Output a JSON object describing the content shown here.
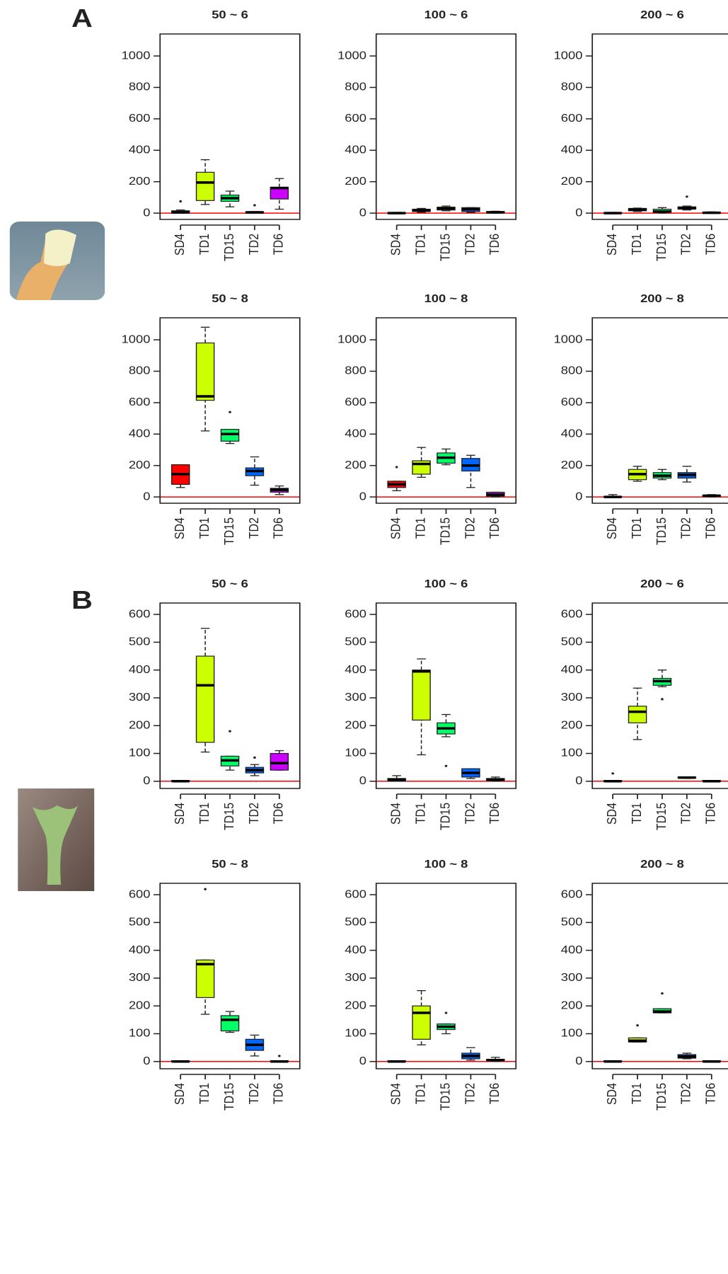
{
  "panel_labels": [
    "A",
    "B"
  ],
  "chart_data": [
    {
      "type": "box",
      "title": "50 ~ 6",
      "categories": [
        "SD4",
        "TD1",
        "TD15",
        "TD2",
        "TD6"
      ],
      "colors": [
        "#ff0000",
        "#ccff00",
        "#00ff66",
        "#0066ff",
        "#cc00ff"
      ],
      "ylim": [
        -40,
        1140
      ],
      "yticks": [
        0,
        200,
        400,
        600,
        800,
        1000
      ],
      "hline": 0,
      "hline_color": "#ff0000",
      "boxes": [
        {
          "min": 0,
          "q1": 0,
          "median": 5,
          "q3": 15,
          "max": 20,
          "outliers": [
            75
          ]
        },
        {
          "min": 55,
          "q1": 80,
          "median": 195,
          "q3": 260,
          "max": 340,
          "outliers": []
        },
        {
          "min": 40,
          "q1": 75,
          "median": 95,
          "q3": 115,
          "max": 140,
          "outliers": []
        },
        {
          "min": 0,
          "q1": 0,
          "median": 5,
          "q3": 8,
          "max": 10,
          "outliers": [
            50
          ]
        },
        {
          "min": 25,
          "q1": 90,
          "median": 160,
          "q3": 165,
          "max": 220,
          "outliers": []
        }
      ]
    },
    {
      "type": "box",
      "title": "100 ~ 6",
      "categories": [
        "SD4",
        "TD1",
        "TD15",
        "TD2",
        "TD6"
      ],
      "colors": [
        "#ff0000",
        "#ccff00",
        "#00ff66",
        "#0066ff",
        "#cc00ff"
      ],
      "ylim": [
        -40,
        1140
      ],
      "yticks": [
        0,
        200,
        400,
        600,
        800,
        1000
      ],
      "hline": 0,
      "hline_color": "#ff0000",
      "boxes": [
        {
          "min": 0,
          "q1": 0,
          "median": 0,
          "q3": 3,
          "max": 5,
          "outliers": []
        },
        {
          "min": 5,
          "q1": 10,
          "median": 18,
          "q3": 25,
          "max": 30,
          "outliers": []
        },
        {
          "min": 15,
          "q1": 20,
          "median": 30,
          "q3": 38,
          "max": 45,
          "outliers": []
        },
        {
          "min": 5,
          "q1": 10,
          "median": 25,
          "q3": 35,
          "max": 35,
          "outliers": []
        },
        {
          "min": 0,
          "q1": 2,
          "median": 5,
          "q3": 10,
          "max": 12,
          "outliers": []
        }
      ]
    },
    {
      "type": "box",
      "title": "200 ~ 6",
      "categories": [
        "SD4",
        "TD1",
        "TD15",
        "TD2",
        "TD6"
      ],
      "colors": [
        "#ff0000",
        "#ccff00",
        "#00ff66",
        "#0066ff",
        "#cc00ff"
      ],
      "ylim": [
        -40,
        1140
      ],
      "yticks": [
        0,
        200,
        400,
        600,
        800,
        1000
      ],
      "hline": 0,
      "hline_color": "#ff0000",
      "boxes": [
        {
          "min": 0,
          "q1": 0,
          "median": 0,
          "q3": 3,
          "max": 5,
          "outliers": []
        },
        {
          "min": 10,
          "q1": 15,
          "median": 22,
          "q3": 30,
          "max": 32,
          "outliers": []
        },
        {
          "min": 0,
          "q1": 5,
          "median": 10,
          "q3": 25,
          "max": 35,
          "outliers": []
        },
        {
          "min": 20,
          "q1": 25,
          "median": 32,
          "q3": 40,
          "max": 45,
          "outliers": [
            105
          ]
        },
        {
          "min": 0,
          "q1": 0,
          "median": 2,
          "q3": 5,
          "max": 8,
          "outliers": []
        }
      ]
    },
    {
      "type": "box",
      "title": "50 ~ 8",
      "categories": [
        "SD4",
        "TD1",
        "TD15",
        "TD2",
        "TD6"
      ],
      "colors": [
        "#ff0000",
        "#ccff00",
        "#00ff66",
        "#0066ff",
        "#cc00ff"
      ],
      "ylim": [
        -40,
        1140
      ],
      "yticks": [
        0,
        200,
        400,
        600,
        800,
        1000
      ],
      "hline": 0,
      "hline_color": "#ff0000",
      "boxes": [
        {
          "min": 60,
          "q1": 80,
          "median": 145,
          "q3": 205,
          "max": 205,
          "outliers": []
        },
        {
          "min": 420,
          "q1": 615,
          "median": 640,
          "q3": 980,
          "max": 1080,
          "outliers": []
        },
        {
          "min": 340,
          "q1": 355,
          "median": 400,
          "q3": 430,
          "max": 430,
          "outliers": [
            540
          ]
        },
        {
          "min": 75,
          "q1": 135,
          "median": 165,
          "q3": 185,
          "max": 255,
          "outliers": []
        },
        {
          "min": 15,
          "q1": 30,
          "median": 45,
          "q3": 55,
          "max": 70,
          "outliers": []
        }
      ]
    },
    {
      "type": "box",
      "title": "100 ~ 8",
      "categories": [
        "SD4",
        "TD1",
        "TD15",
        "TD2",
        "TD6"
      ],
      "colors": [
        "#ff0000",
        "#ccff00",
        "#00ff66",
        "#0066ff",
        "#cc00ff"
      ],
      "ylim": [
        -40,
        1140
      ],
      "yticks": [
        0,
        200,
        400,
        600,
        800,
        1000
      ],
      "hline": 0,
      "hline_color": "#ff0000",
      "boxes": [
        {
          "min": 40,
          "q1": 60,
          "median": 80,
          "q3": 100,
          "max": 100,
          "outliers": [
            190
          ]
        },
        {
          "min": 125,
          "q1": 145,
          "median": 210,
          "q3": 230,
          "max": 315,
          "outliers": []
        },
        {
          "min": 205,
          "q1": 215,
          "median": 250,
          "q3": 280,
          "max": 305,
          "outliers": []
        },
        {
          "min": 60,
          "q1": 165,
          "median": 200,
          "q3": 245,
          "max": 265,
          "outliers": []
        },
        {
          "min": 0,
          "q1": 5,
          "median": 15,
          "q3": 30,
          "max": 30,
          "outliers": []
        }
      ]
    },
    {
      "type": "box",
      "title": "200 ~ 8",
      "categories": [
        "SD4",
        "TD1",
        "TD15",
        "TD2",
        "TD6"
      ],
      "colors": [
        "#ff0000",
        "#ccff00",
        "#00ff66",
        "#0066ff",
        "#cc00ff"
      ],
      "ylim": [
        -40,
        1140
      ],
      "yticks": [
        0,
        200,
        400,
        600,
        800,
        1000
      ],
      "hline": 0,
      "hline_color": "#ff0000",
      "boxes": [
        {
          "min": 0,
          "q1": 0,
          "median": 0,
          "q3": 3,
          "max": 15,
          "outliers": []
        },
        {
          "min": 100,
          "q1": 110,
          "median": 145,
          "q3": 175,
          "max": 195,
          "outliers": []
        },
        {
          "min": 110,
          "q1": 120,
          "median": 135,
          "q3": 155,
          "max": 175,
          "outliers": []
        },
        {
          "min": 95,
          "q1": 120,
          "median": 140,
          "q3": 155,
          "max": 195,
          "outliers": []
        },
        {
          "min": 0,
          "q1": 3,
          "median": 8,
          "q3": 10,
          "max": 15,
          "outliers": []
        }
      ]
    },
    {
      "type": "box",
      "title": "50 ~ 6",
      "categories": [
        "SD4",
        "TD1",
        "TD15",
        "TD2",
        "TD6"
      ],
      "colors": [
        "#ff0000",
        "#ccff00",
        "#00ff66",
        "#0066ff",
        "#cc00ff"
      ],
      "ylim": [
        -26,
        641
      ],
      "yticks": [
        0,
        100,
        200,
        300,
        400,
        500,
        600
      ],
      "hline": 0,
      "hline_color": "#ff0000",
      "boxes": [
        {
          "min": 0,
          "q1": 0,
          "median": 0,
          "q3": 3,
          "max": 3,
          "outliers": []
        },
        {
          "min": 105,
          "q1": 140,
          "median": 345,
          "q3": 450,
          "max": 550,
          "outliers": []
        },
        {
          "min": 40,
          "q1": 55,
          "median": 75,
          "q3": 90,
          "max": 90,
          "outliers": [
            180
          ]
        },
        {
          "min": 20,
          "q1": 30,
          "median": 40,
          "q3": 50,
          "max": 60,
          "outliers": [
            85
          ]
        },
        {
          "min": 40,
          "q1": 40,
          "median": 65,
          "q3": 100,
          "max": 110,
          "outliers": []
        }
      ]
    },
    {
      "type": "box",
      "title": "100 ~ 6",
      "categories": [
        "SD4",
        "TD1",
        "TD15",
        "TD2",
        "TD6"
      ],
      "colors": [
        "#ff0000",
        "#ccff00",
        "#00ff66",
        "#0066ff",
        "#cc00ff"
      ],
      "ylim": [
        -26,
        641
      ],
      "yticks": [
        0,
        100,
        200,
        300,
        400,
        500,
        600
      ],
      "hline": 0,
      "hline_color": "#ff0000",
      "boxes": [
        {
          "min": 0,
          "q1": 0,
          "median": 5,
          "q3": 10,
          "max": 20,
          "outliers": []
        },
        {
          "min": 95,
          "q1": 220,
          "median": 395,
          "q3": 400,
          "max": 440,
          "outliers": []
        },
        {
          "min": 160,
          "q1": 170,
          "median": 190,
          "q3": 210,
          "max": 240,
          "outliers": [
            55
          ]
        },
        {
          "min": 10,
          "q1": 15,
          "median": 30,
          "q3": 45,
          "max": 45,
          "outliers": []
        },
        {
          "min": 0,
          "q1": 2,
          "median": 5,
          "q3": 10,
          "max": 15,
          "outliers": []
        }
      ]
    },
    {
      "type": "box",
      "title": "200 ~ 6",
      "categories": [
        "SD4",
        "TD1",
        "TD15",
        "TD2",
        "TD6"
      ],
      "colors": [
        "#ff0000",
        "#ccff00",
        "#00ff66",
        "#0066ff",
        "#cc00ff"
      ],
      "ylim": [
        -26,
        641
      ],
      "yticks": [
        0,
        100,
        200,
        300,
        400,
        500,
        600
      ],
      "hline": 0,
      "hline_color": "#ff0000",
      "boxes": [
        {
          "min": 0,
          "q1": 0,
          "median": 0,
          "q3": 3,
          "max": 3,
          "outliers": [
            28
          ]
        },
        {
          "min": 150,
          "q1": 210,
          "median": 250,
          "q3": 270,
          "max": 335,
          "outliers": []
        },
        {
          "min": 340,
          "q1": 345,
          "median": 360,
          "q3": 370,
          "max": 400,
          "outliers": [
            295
          ]
        },
        {
          "min": 10,
          "q1": 12,
          "median": 13,
          "q3": 15,
          "max": 15,
          "outliers": []
        },
        {
          "min": 0,
          "q1": 0,
          "median": 0,
          "q3": 3,
          "max": 3,
          "outliers": []
        }
      ]
    },
    {
      "type": "box",
      "title": "50 ~ 8",
      "categories": [
        "SD4",
        "TD1",
        "TD15",
        "TD2",
        "TD6"
      ],
      "colors": [
        "#ff0000",
        "#ccff00",
        "#00ff66",
        "#0066ff",
        "#cc00ff"
      ],
      "ylim": [
        -26,
        641
      ],
      "yticks": [
        0,
        100,
        200,
        300,
        400,
        500,
        600
      ],
      "hline": 0,
      "hline_color": "#ff0000",
      "boxes": [
        {
          "min": 0,
          "q1": 0,
          "median": 0,
          "q3": 3,
          "max": 3,
          "outliers": []
        },
        {
          "min": 170,
          "q1": 230,
          "median": 350,
          "q3": 365,
          "max": 365,
          "outliers": [
            620
          ]
        },
        {
          "min": 105,
          "q1": 110,
          "median": 150,
          "q3": 165,
          "max": 180,
          "outliers": []
        },
        {
          "min": 20,
          "q1": 40,
          "median": 60,
          "q3": 80,
          "max": 95,
          "outliers": []
        },
        {
          "min": 0,
          "q1": 0,
          "median": 0,
          "q3": 3,
          "max": 3,
          "outliers": [
            20
          ]
        }
      ]
    },
    {
      "type": "box",
      "title": "100 ~ 8",
      "categories": [
        "SD4",
        "TD1",
        "TD15",
        "TD2",
        "TD6"
      ],
      "colors": [
        "#ff0000",
        "#ccff00",
        "#00ff66",
        "#0066ff",
        "#cc00ff"
      ],
      "ylim": [
        -26,
        641
      ],
      "yticks": [
        0,
        100,
        200,
        300,
        400,
        500,
        600
      ],
      "hline": 0,
      "hline_color": "#ff0000",
      "boxes": [
        {
          "min": 0,
          "q1": 0,
          "median": 0,
          "q3": 3,
          "max": 3,
          "outliers": []
        },
        {
          "min": 60,
          "q1": 80,
          "median": 175,
          "q3": 200,
          "max": 255,
          "outliers": []
        },
        {
          "min": 100,
          "q1": 115,
          "median": 125,
          "q3": 135,
          "max": 135,
          "outliers": [
            175
          ]
        },
        {
          "min": 5,
          "q1": 10,
          "median": 20,
          "q3": 30,
          "max": 50,
          "outliers": []
        },
        {
          "min": 0,
          "q1": 3,
          "median": 5,
          "q3": 8,
          "max": 15,
          "outliers": []
        }
      ]
    },
    {
      "type": "box",
      "title": "200 ~ 8",
      "categories": [
        "SD4",
        "TD1",
        "TD15",
        "TD2",
        "TD6"
      ],
      "colors": [
        "#ff0000",
        "#ccff00",
        "#00ff66",
        "#0066ff",
        "#cc00ff"
      ],
      "ylim": [
        -26,
        641
      ],
      "yticks": [
        0,
        100,
        200,
        300,
        400,
        500,
        600
      ],
      "hline": 0,
      "hline_color": "#ff0000",
      "boxes": [
        {
          "min": 0,
          "q1": 0,
          "median": 0,
          "q3": 3,
          "max": 3,
          "outliers": []
        },
        {
          "min": 70,
          "q1": 70,
          "median": 75,
          "q3": 85,
          "max": 85,
          "outliers": [
            130
          ]
        },
        {
          "min": 175,
          "q1": 175,
          "median": 180,
          "q3": 190,
          "max": 190,
          "outliers": [
            245
          ]
        },
        {
          "min": 10,
          "q1": 12,
          "median": 18,
          "q3": 25,
          "max": 30,
          "outliers": []
        },
        {
          "min": 0,
          "q1": 0,
          "median": 0,
          "q3": 3,
          "max": 3,
          "outliers": []
        }
      ]
    }
  ]
}
